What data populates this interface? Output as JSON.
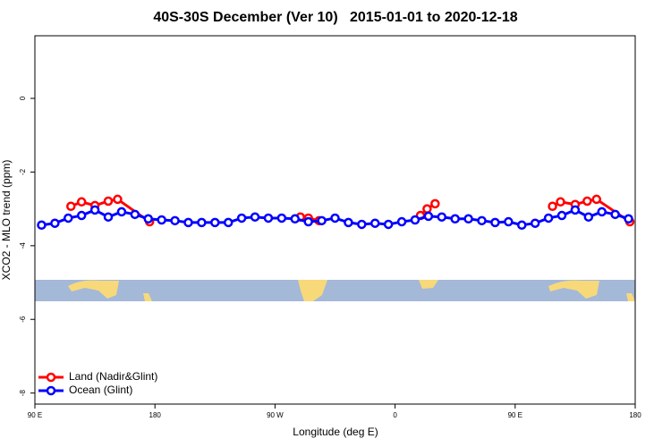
{
  "chart_data": {
    "type": "line",
    "title": "40S-30S December (Ver 10)   2015-01-01 to 2020-12-18",
    "xlabel": "Longitude (deg E)",
    "ylabel": "XCO2 - MLO trend (ppm)",
    "xlim": [
      90,
      540
    ],
    "ylim": [
      -8.3,
      1.7
    ],
    "xticks": [
      {
        "value": 90,
        "label": "90 E"
      },
      {
        "value": 180,
        "label": "180"
      },
      {
        "value": 270,
        "label": "90 W"
      },
      {
        "value": 360,
        "label": "0"
      },
      {
        "value": 450,
        "label": "90 E"
      },
      {
        "value": 540,
        "label": "180"
      }
    ],
    "yticks": [
      0,
      -2,
      -4,
      -6,
      -8
    ],
    "legend": "bottom-left",
    "series": [
      {
        "name": "Land (Nadir&Glint)",
        "color": "#ff0000",
        "x": [
          117,
          125,
          135,
          145,
          152,
          176,
          230,
          289,
          295,
          303,
          340,
          379,
          384,
          390,
          430,
          478,
          484,
          495,
          504,
          511,
          536
        ],
        "values": [
          -2.93,
          -2.81,
          -2.91,
          -2.79,
          -2.74,
          -3.35,
          null,
          -3.22,
          -3.25,
          -3.32,
          null,
          -3.18,
          -3.0,
          -2.86,
          null,
          -2.93,
          -2.81,
          -2.88,
          -2.79,
          -2.74,
          -3.35
        ]
      },
      {
        "name": "Ocean (Glint)",
        "color": "#0000ff",
        "x": [
          95,
          105,
          115,
          125,
          135,
          145,
          155,
          165,
          175,
          185,
          195,
          205,
          215,
          225,
          235,
          245,
          255,
          265,
          275,
          285,
          295,
          305,
          315,
          325,
          335,
          345,
          355,
          365,
          375,
          385,
          395,
          405,
          415,
          425,
          435,
          445,
          455,
          465,
          475,
          485,
          495,
          505,
          515,
          525,
          535
        ],
        "values": [
          -3.44,
          -3.39,
          -3.25,
          -3.18,
          -3.03,
          -3.22,
          -3.08,
          -3.15,
          -3.27,
          -3.3,
          -3.32,
          -3.37,
          -3.37,
          -3.37,
          -3.37,
          -3.25,
          -3.22,
          -3.25,
          -3.25,
          -3.27,
          -3.35,
          -3.32,
          -3.25,
          -3.37,
          -3.42,
          -3.39,
          -3.42,
          -3.35,
          -3.3,
          -3.2,
          -3.22,
          -3.27,
          -3.27,
          -3.32,
          -3.37,
          -3.35,
          -3.44,
          -3.39,
          -3.25,
          -3.18,
          -3.03,
          -3.22,
          -3.08,
          -3.15,
          -3.27
        ]
      }
    ]
  }
}
